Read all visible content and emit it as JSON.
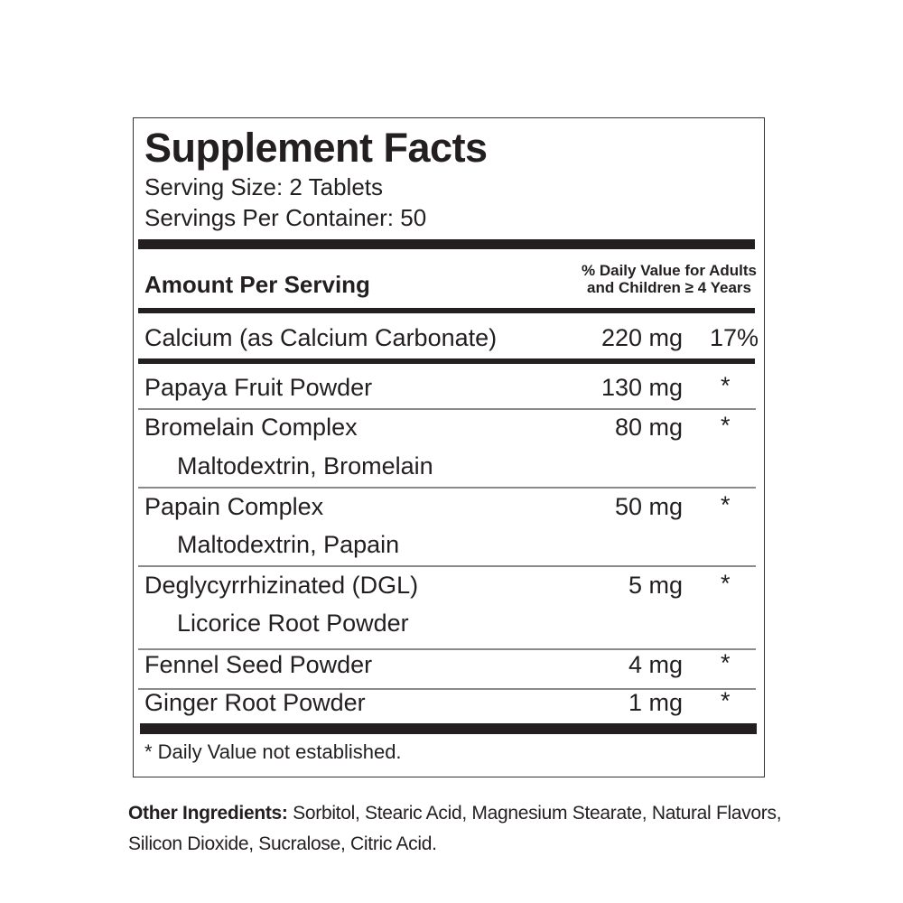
{
  "title": "Supplement Facts",
  "serving_size": "Serving Size: 2 Tablets",
  "servings_per_container": "Servings Per Container: 50",
  "header": {
    "amount": "Amount Per Serving",
    "dv_line1": "% Daily Value for Adults",
    "dv_line2": "and Children ≥ 4 Years"
  },
  "calcium": {
    "name": "Calcium (as Calcium Carbonate)",
    "amount": "220 mg",
    "dv": "17%"
  },
  "ingredients": [
    {
      "name": "Papaya Fruit Powder",
      "sub": "",
      "amount": "130 mg",
      "dv": "*"
    },
    {
      "name": "Bromelain Complex",
      "sub": "Maltodextrin, Bromelain",
      "amount": "80 mg",
      "dv": "*"
    },
    {
      "name": "Papain Complex",
      "sub": "Maltodextrin, Papain",
      "amount": "50 mg",
      "dv": "*"
    },
    {
      "name": "Deglycyrrhizinated (DGL)",
      "sub": "Licorice Root Powder",
      "amount": "5 mg",
      "dv": "*"
    },
    {
      "name": "Fennel Seed Powder",
      "sub": "",
      "amount": "4 mg",
      "dv": "*"
    },
    {
      "name": "Ginger Root Powder",
      "sub": "",
      "amount": "1 mg",
      "dv": "*"
    }
  ],
  "footnote": "* Daily Value not established.",
  "other_ingredients": {
    "label": "Other Ingredients:",
    "text": " Sorbitol, Stearic Acid, Magnesium Stearate, Natural Flavors, Silicon Dioxide, Sucralose, Citric Acid."
  }
}
